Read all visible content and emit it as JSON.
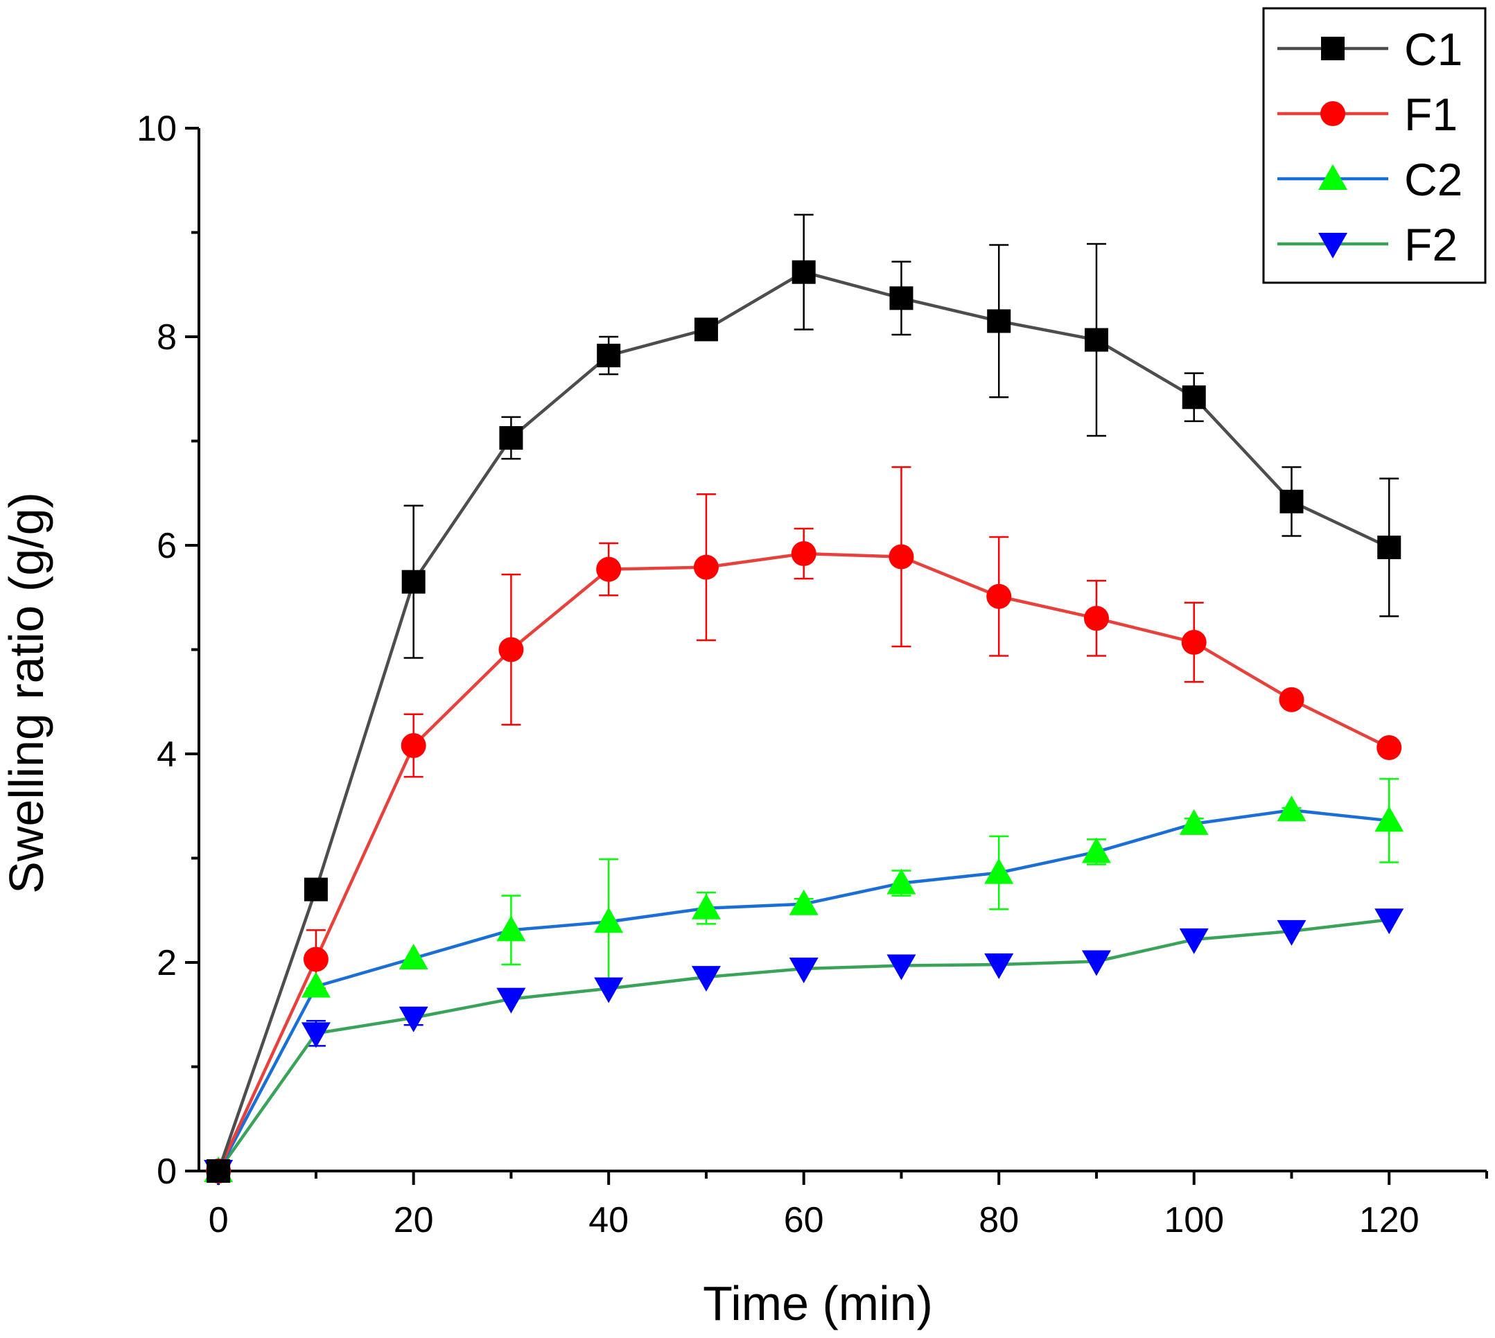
{
  "chart_data": {
    "type": "line",
    "title": "",
    "xlabel": "Time (min)",
    "ylabel": "Swelling ratio (g/g)",
    "xlim": [
      -2,
      130
    ],
    "ylim": [
      0,
      10
    ],
    "x_ticks": [
      0,
      20,
      40,
      60,
      80,
      100,
      120
    ],
    "x_minor_ticks": [
      10,
      30,
      50,
      70,
      90,
      110,
      130
    ],
    "y_ticks": [
      0,
      2,
      4,
      6,
      8,
      10
    ],
    "y_minor_ticks": [
      1,
      3,
      5,
      7,
      9
    ],
    "grid": false,
    "legend_position": "top-right",
    "x": [
      0,
      10,
      20,
      30,
      40,
      50,
      60,
      70,
      80,
      90,
      100,
      110,
      120
    ],
    "series": [
      {
        "name": "C1",
        "line_color": "#4d4d4d",
        "marker_color": "#000000",
        "marker": "square",
        "values": [
          0,
          2.7,
          5.65,
          7.03,
          7.82,
          8.07,
          8.62,
          8.37,
          8.15,
          7.97,
          7.42,
          6.42,
          5.98
        ],
        "errors": [
          0,
          0,
          0.73,
          0.2,
          0.18,
          0,
          0.55,
          0.35,
          0.73,
          0.92,
          0.23,
          0.33,
          0.66
        ]
      },
      {
        "name": "F1",
        "line_color": "#e8413c",
        "marker_color": "#ff0000",
        "marker": "circle",
        "values": [
          0,
          2.03,
          4.08,
          5.0,
          5.77,
          5.79,
          5.92,
          5.89,
          5.51,
          5.3,
          5.07,
          4.52,
          4.06
        ],
        "errors": [
          0,
          0.28,
          0.3,
          0.72,
          0.25,
          0.7,
          0.24,
          0.86,
          0.57,
          0.36,
          0.38,
          0.05,
          0.02
        ]
      },
      {
        "name": "C2",
        "line_color": "#1a6ed8",
        "marker_color": "#00ff00",
        "marker": "triangle-up",
        "values": [
          0,
          1.77,
          2.04,
          2.31,
          2.39,
          2.52,
          2.56,
          2.76,
          2.86,
          3.06,
          3.33,
          3.46,
          3.36
        ],
        "errors": [
          0,
          0,
          0,
          0.33,
          0.6,
          0.15,
          0.05,
          0.12,
          0.35,
          0.12,
          0.05,
          0.02,
          0.4
        ]
      },
      {
        "name": "F2",
        "line_color": "#3aa35a",
        "marker_color": "#0000ff",
        "marker": "triangle-down",
        "values": [
          0,
          1.32,
          1.47,
          1.65,
          1.75,
          1.86,
          1.94,
          1.97,
          1.98,
          2.01,
          2.22,
          2.3,
          2.41
        ],
        "errors": [
          0,
          0.12,
          0.07,
          0,
          0,
          0,
          0,
          0,
          0,
          0,
          0,
          0,
          0
        ]
      }
    ]
  }
}
